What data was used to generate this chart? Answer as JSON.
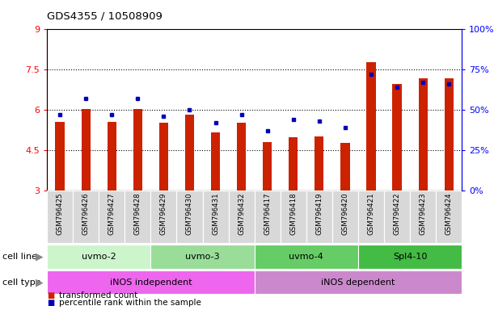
{
  "title": "GDS4355 / 10508909",
  "samples": [
    "GSM796425",
    "GSM796426",
    "GSM796427",
    "GSM796428",
    "GSM796429",
    "GSM796430",
    "GSM796431",
    "GSM796432",
    "GSM796417",
    "GSM796418",
    "GSM796419",
    "GSM796420",
    "GSM796421",
    "GSM796422",
    "GSM796423",
    "GSM796424"
  ],
  "transformed_count": [
    5.55,
    6.05,
    5.55,
    6.05,
    5.52,
    5.82,
    5.18,
    5.52,
    4.82,
    4.98,
    5.02,
    4.78,
    7.78,
    6.98,
    7.18,
    7.18
  ],
  "percentile_rank_pct": [
    47,
    57,
    47,
    57,
    46,
    50,
    42,
    47,
    37,
    44,
    43,
    39,
    72,
    64,
    67,
    66
  ],
  "ylim_left": [
    3,
    9
  ],
  "ylim_right": [
    0,
    100
  ],
  "yticks_left": [
    3,
    4.5,
    6,
    7.5,
    9
  ],
  "yticks_right": [
    0,
    25,
    50,
    75,
    100
  ],
  "ytick_labels_left": [
    "3",
    "4.5",
    "6",
    "7.5",
    "9"
  ],
  "ytick_labels_right": [
    "0%",
    "25%",
    "50%",
    "75%",
    "100%"
  ],
  "cell_lines": [
    {
      "label": "uvmo-2",
      "start": 0,
      "end": 4,
      "color": "#ccf5cc"
    },
    {
      "label": "uvmo-3",
      "start": 4,
      "end": 8,
      "color": "#99dd99"
    },
    {
      "label": "uvmo-4",
      "start": 8,
      "end": 12,
      "color": "#66cc66"
    },
    {
      "label": "Spl4-10",
      "start": 12,
      "end": 16,
      "color": "#44bb44"
    }
  ],
  "cell_types": [
    {
      "label": "iNOS independent",
      "start": 0,
      "end": 8,
      "color": "#ee77ee"
    },
    {
      "label": "iNOS dependent",
      "start": 8,
      "end": 16,
      "color": "#cc88cc"
    }
  ],
  "bar_color": "#cc2200",
  "dot_color": "#0000bb",
  "background_color": "#ffffff",
  "legend_items": [
    {
      "label": "transformed count",
      "color": "#cc2200"
    },
    {
      "label": "percentile rank within the sample",
      "color": "#0000bb"
    }
  ]
}
